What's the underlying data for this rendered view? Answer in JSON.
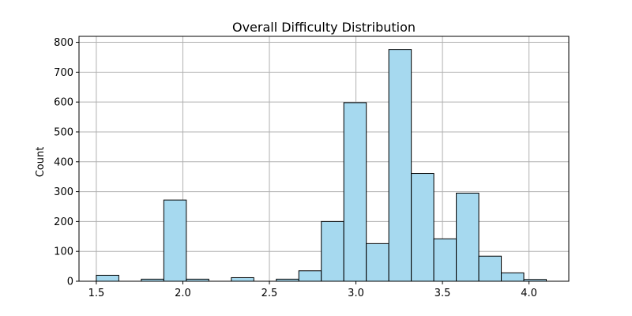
{
  "chart_data": {
    "type": "bar",
    "title": "Overall Difficulty Distribution",
    "xlabel": "",
    "ylabel": "Count",
    "xlim": [
      1.4,
      4.23
    ],
    "ylim": [
      0,
      820
    ],
    "grid": true,
    "bar_color": "#a6d9ef",
    "edge_color": "#000000",
    "grid_color": "#b0b0b0",
    "bin_width": 0.13,
    "bins": [
      {
        "start": 1.5,
        "count": 20
      },
      {
        "start": 1.63,
        "count": 0
      },
      {
        "start": 1.76,
        "count": 7
      },
      {
        "start": 1.89,
        "count": 272
      },
      {
        "start": 2.02,
        "count": 7
      },
      {
        "start": 2.15,
        "count": 0
      },
      {
        "start": 2.28,
        "count": 12
      },
      {
        "start": 2.41,
        "count": 0
      },
      {
        "start": 2.54,
        "count": 7
      },
      {
        "start": 2.67,
        "count": 35
      },
      {
        "start": 2.8,
        "count": 200
      },
      {
        "start": 2.93,
        "count": 598
      },
      {
        "start": 3.06,
        "count": 126
      },
      {
        "start": 3.19,
        "count": 776
      },
      {
        "start": 3.32,
        "count": 361
      },
      {
        "start": 3.45,
        "count": 142
      },
      {
        "start": 3.58,
        "count": 295
      },
      {
        "start": 3.71,
        "count": 84
      },
      {
        "start": 3.84,
        "count": 28
      },
      {
        "start": 3.97,
        "count": 6
      }
    ],
    "x_ticks": [
      {
        "value": 1.5,
        "label": "1.5"
      },
      {
        "value": 2.0,
        "label": "2.0"
      },
      {
        "value": 2.5,
        "label": "2.5"
      },
      {
        "value": 3.0,
        "label": "3.0"
      },
      {
        "value": 3.5,
        "label": "3.5"
      },
      {
        "value": 4.0,
        "label": "4.0"
      }
    ],
    "y_ticks": [
      {
        "value": 0,
        "label": "0"
      },
      {
        "value": 100,
        "label": "100"
      },
      {
        "value": 200,
        "label": "200"
      },
      {
        "value": 300,
        "label": "300"
      },
      {
        "value": 400,
        "label": "400"
      },
      {
        "value": 500,
        "label": "500"
      },
      {
        "value": 600,
        "label": "600"
      },
      {
        "value": 700,
        "label": "700"
      },
      {
        "value": 800,
        "label": "800"
      }
    ]
  }
}
